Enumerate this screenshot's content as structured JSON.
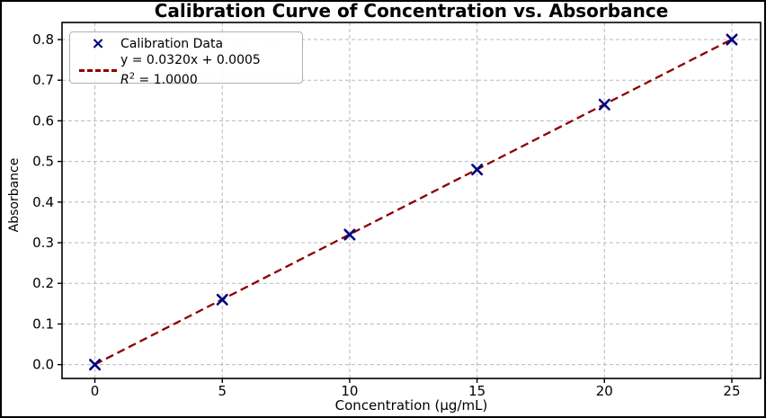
{
  "chart_data": {
    "type": "scatter",
    "title": "Calibration Curve of Concentration vs. Absorbance",
    "xlabel": "Concentration (µg/mL)",
    "ylabel": "Absorbance",
    "x": [
      0,
      5,
      10,
      15,
      20,
      25
    ],
    "y": [
      0.0,
      0.16,
      0.32,
      0.48,
      0.64,
      0.8
    ],
    "series_name": "Calibration Data",
    "fit_line": {
      "slope": 0.032,
      "intercept": 0.0005,
      "r_squared": 1.0,
      "x_start": 0,
      "x_end": 25
    },
    "xticks": [
      0,
      5,
      10,
      15,
      20,
      25
    ],
    "xtick_labels": [
      "0",
      "5",
      "10",
      "15",
      "20",
      "25"
    ],
    "yticks": [
      0.0,
      0.1,
      0.2,
      0.3,
      0.4,
      0.5,
      0.6,
      0.7,
      0.8
    ],
    "ytick_labels": [
      "0.0",
      "0.1",
      "0.2",
      "0.3",
      "0.4",
      "0.5",
      "0.6",
      "0.7",
      "0.8"
    ],
    "xlim": [
      -1.29,
      26.13
    ],
    "ylim": [
      -0.034,
      0.842
    ],
    "grid": true,
    "legend_position": "upper left"
  },
  "legend": {
    "data_label": "Calibration Data",
    "equation_label": "y = 0.0320x + 0.0005",
    "r2_prefix": "R",
    "r2_exponent": "2",
    "r2_value": " = 1.0000"
  },
  "colors": {
    "marker": "#000080",
    "fit_line": "#8B0000",
    "grid": "#b8b8b8",
    "spine": "#000000",
    "text": "#000000"
  }
}
